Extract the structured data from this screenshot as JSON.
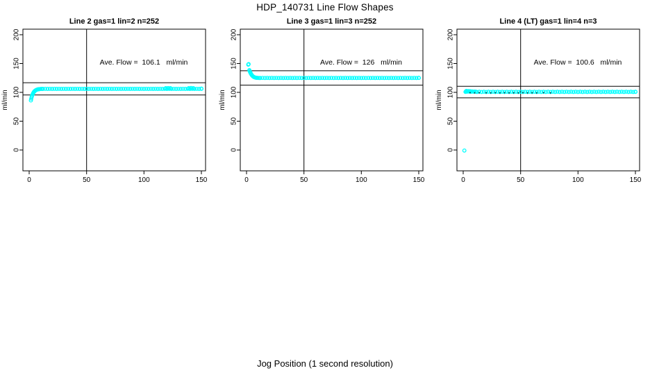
{
  "figure": {
    "title": "HDP_140731  Line Flow Shapes",
    "xlabel": "Jog Position (1 second resolution)"
  },
  "chart_data": [
    {
      "type": "scatter",
      "title": "Line 2 gas=1 lin=2 n=252",
      "annotation": "Ave. Flow =  106.1   ml/min",
      "ave_flow_ml_min": 106.1,
      "n": 252,
      "ylabel": "ml/min",
      "x_ticks": [
        0,
        50,
        100,
        150
      ],
      "y_ticks": [
        0,
        50,
        100,
        150,
        200
      ],
      "xlim": [
        0,
        155
      ],
      "ylim": [
        -40,
        210
      ],
      "vline_x": 50,
      "ref_lines": [
        116.7,
        95.5
      ],
      "marker": "open-circle",
      "marker_color": "#00FFFF",
      "head_points": [
        [
          1.5,
          86
        ],
        [
          1.8,
          89
        ],
        [
          2.2,
          92
        ],
        [
          2.6,
          94.5
        ],
        [
          3,
          96.5
        ],
        [
          3.4,
          98.2
        ],
        [
          3.8,
          99.6
        ],
        [
          4.2,
          100.8
        ],
        [
          4.6,
          101.8
        ],
        [
          5,
          102.6
        ],
        [
          5.5,
          103.4
        ],
        [
          6,
          104
        ],
        [
          6.5,
          104.5
        ],
        [
          7,
          104.9
        ],
        [
          7.5,
          105.2
        ],
        [
          8,
          105.4
        ],
        [
          8.5,
          105.6
        ],
        [
          9,
          105.7
        ],
        [
          10,
          105.9
        ],
        [
          11,
          106
        ]
      ],
      "flat_segment": {
        "x_from": 12,
        "x_to": 150,
        "step": 2,
        "y": 106.1,
        "jitter": 0.2
      },
      "extra_points": [
        [
          119,
          107.2
        ],
        [
          121,
          107.5
        ],
        [
          123,
          107.3
        ],
        [
          139,
          107.2
        ],
        [
          141,
          107.6
        ],
        [
          143,
          107.3
        ],
        [
          150,
          106.5
        ]
      ]
    },
    {
      "type": "scatter",
      "title": "Line 3 gas=1 lin=3 n=252",
      "annotation": "Ave. Flow =  126   ml/min",
      "ave_flow_ml_min": 126,
      "n": 252,
      "ylabel": "ml/min",
      "x_ticks": [
        0,
        50,
        100,
        150
      ],
      "y_ticks": [
        0,
        50,
        100,
        150,
        200
      ],
      "xlim": [
        0,
        155
      ],
      "ylim": [
        -40,
        210
      ],
      "vline_x": 50,
      "ref_lines": [
        137.5,
        112.5
      ],
      "marker": "open-circle",
      "marker_color": "#00FFFF",
      "head_points": [
        [
          1.5,
          148.2
        ],
        [
          1.8,
          149
        ],
        [
          2.5,
          138.5
        ],
        [
          2.8,
          136.8
        ],
        [
          3.1,
          135.2
        ],
        [
          3.5,
          133.6
        ],
        [
          3.9,
          132.2
        ],
        [
          4.3,
          130.9
        ],
        [
          4.7,
          129.8
        ],
        [
          5.1,
          128.8
        ],
        [
          5.5,
          128
        ],
        [
          6,
          127.2
        ],
        [
          6.5,
          126.6
        ],
        [
          7,
          126.1
        ],
        [
          7.5,
          125.8
        ],
        [
          8,
          125.5
        ],
        [
          8.5,
          125.3
        ],
        [
          9,
          125.2
        ],
        [
          10,
          125.1
        ],
        [
          11,
          125
        ]
      ],
      "flat_segment": {
        "x_from": 12,
        "x_to": 150,
        "step": 2,
        "y": 125,
        "jitter": 0.2
      },
      "extra_points": [
        [
          150,
          125.2
        ]
      ]
    },
    {
      "type": "scatter",
      "title": "Line 4 (LT) gas=1 lin=4 n=3",
      "annotation": "Ave. Flow =  100.6   ml/min",
      "ave_flow_ml_min": 100.6,
      "n": 3,
      "ylabel": "ml/min",
      "x_ticks": [
        0,
        50,
        100,
        150
      ],
      "y_ticks": [
        0,
        50,
        100,
        150,
        200
      ],
      "xlim": [
        0,
        155
      ],
      "ylim": [
        -40,
        210
      ],
      "vline_x": 50,
      "ref_lines": [
        110.5,
        90.5
      ],
      "marker": "open-circle",
      "marker_color": "#00FFFF",
      "head_points": [
        [
          1,
          -1
        ],
        [
          2,
          100.9
        ],
        [
          2.4,
          101.9
        ],
        [
          2.8,
          102.4
        ],
        [
          3.2,
          101.3
        ],
        [
          3.6,
          102.1
        ],
        [
          4,
          101.5
        ],
        [
          4.5,
          102.2
        ],
        [
          5,
          101.4
        ],
        [
          5.5,
          102
        ],
        [
          6,
          101.3
        ],
        [
          6.5,
          101.8
        ],
        [
          7,
          101.2
        ],
        [
          8,
          101.6
        ],
        [
          9,
          101.1
        ],
        [
          10,
          101.5
        ],
        [
          11,
          101.2
        ]
      ],
      "flat_segment": {
        "x_from": 12,
        "x_to": 150,
        "step": 2,
        "y": 100.9,
        "jitter": 0.35
      },
      "extra_points": [
        [
          150,
          100.9
        ]
      ],
      "dark_color": "#0a3d3d",
      "dark_points": [
        [
          6,
          99.4
        ],
        [
          10,
          99.2
        ],
        [
          14,
          99.3
        ],
        [
          20,
          99.3
        ],
        [
          24,
          99.1
        ],
        [
          28,
          99.4
        ],
        [
          32,
          99.2
        ],
        [
          36,
          99.4
        ],
        [
          40,
          99.1
        ],
        [
          44,
          99.3
        ],
        [
          48,
          99.2
        ],
        [
          52,
          99.4
        ],
        [
          56,
          99.1
        ],
        [
          60,
          99.3
        ],
        [
          64,
          99.2
        ],
        [
          70,
          99.4
        ],
        [
          76,
          99.2
        ]
      ]
    }
  ]
}
